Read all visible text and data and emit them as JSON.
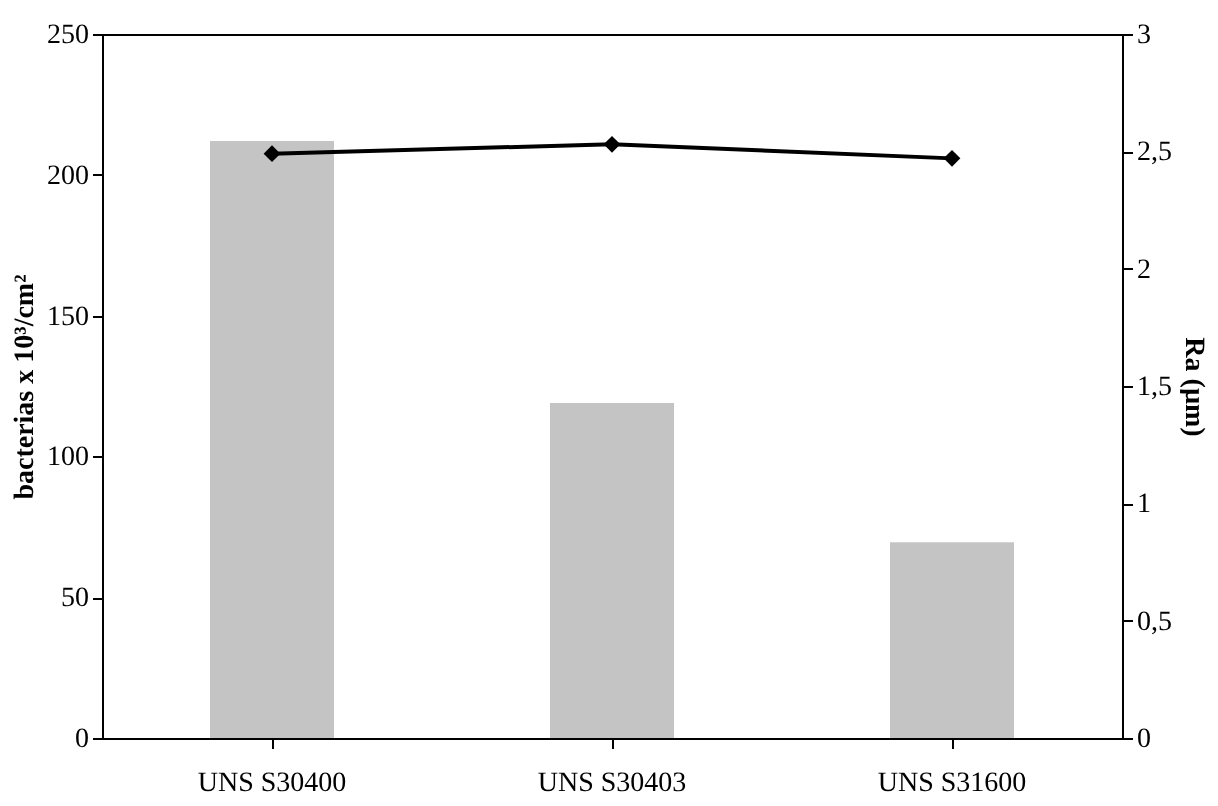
{
  "chart_data": {
    "type": "bar",
    "categories": [
      "UNS S30400",
      "UNS S30403",
      "UNS S31600"
    ],
    "ylabel": "bacterias x 10³/cm²",
    "y2label": "Ra (µm)",
    "series": [
      {
        "color": "#c4c4c4",
        "values": [
          212,
          119,
          69.5
        ]
      },
      {
        "type": "line",
        "axis": "y2",
        "color": "#000000",
        "values": [
          2.49,
          2.53,
          2.47
        ],
        "marker": "diamond",
        "line_style": "solid"
      }
    ],
    "ylim": [
      0,
      250
    ],
    "yticks": [
      0,
      50,
      100,
      150,
      200,
      250
    ],
    "y2lim": [
      0,
      3
    ],
    "y2ticks": [
      0,
      {
        "value": 0.5,
        "label": "0,5"
      },
      1,
      {
        "value": 1.5,
        "label": "1,5"
      },
      2,
      {
        "value": 2.5,
        "label": "2,5"
      },
      3
    ],
    "grid": false,
    "legend": false
  }
}
